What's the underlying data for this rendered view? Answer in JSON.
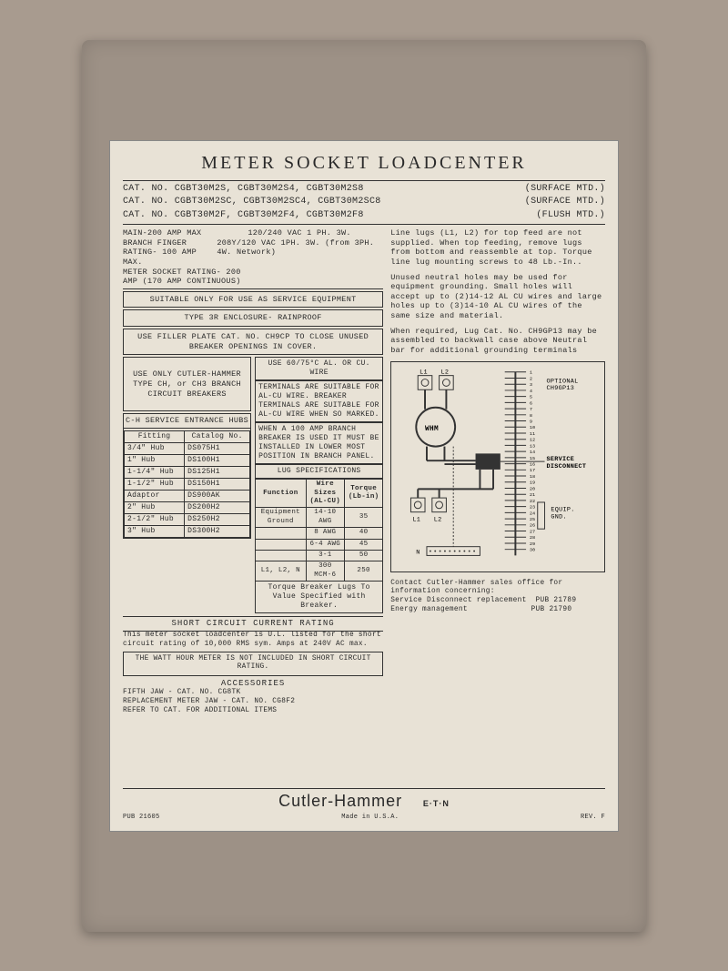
{
  "title": "METER SOCKET LOADCENTER",
  "cat_rows": [
    {
      "left": "CAT. NO. CGBT30M2S, CGBT30M2S4, CGBT30M2S8",
      "right": "(SURFACE MTD.)"
    },
    {
      "left": "CAT. NO. CGBT30M2SC, CGBT30M2SC4, CGBT30M2SC8",
      "right": "(SURFACE MTD.)"
    },
    {
      "left": "CAT. NO. CGBT30M2F, CGBT30M2F4, CGBT30M2F8",
      "right": "(FLUSH MTD.)"
    }
  ],
  "main_specs": [
    {
      "k": "MAIN-200 AMP MAX",
      "v": "120/240 VAC 1 PH. 3W."
    },
    {
      "k": "BRANCH FINGER RATING- 100 AMP MAX.",
      "v": "208Y/120 VAC 1PH. 3W. (from 3PH. 4W. Network)"
    },
    {
      "k": "METER SOCKET RATING- 200 AMP (170 AMP CONTINUOUS)",
      "v": ""
    }
  ],
  "boxes": {
    "service": "SUITABLE ONLY FOR USE AS SERVICE EQUIPMENT",
    "enclosure": "TYPE 3R ENCLOSURE- RAINPROOF",
    "filler": "USE FILLER PLATE CAT. NO. CH9CP TO CLOSE UNUSED BREAKER OPENINGS IN COVER.",
    "breakers": "USE ONLY CUTLER-HAMMER TYPE CH, or CH3 BRANCH CIRCUIT BREAKERS",
    "wire_title": "USE 60/75°C AL. OR CU. WIRE",
    "wire_note1": "TERMINALS ARE SUITABLE FOR AL-CU WIRE. BREAKER TERMINALS ARE SUITABLE FOR AL-CU WIRE WHEN SO MARKED.",
    "wire_note2": "WHEN A 100 AMP BRANCH BREAKER IS USED IT MUST BE INSTALLED IN LOWER MOST POSITION IN BRANCH PANEL."
  },
  "hubs": {
    "title": "C-H SERVICE ENTRANCE HUBS",
    "headers": [
      "Fitting",
      "Catalog No."
    ],
    "rows": [
      [
        "3/4\"  Hub",
        "DS075H1"
      ],
      [
        "1\"    Hub",
        "DS100H1"
      ],
      [
        "1-1/4\" Hub",
        "DS125H1"
      ],
      [
        "1-1/2\" Hub",
        "DS150H1"
      ],
      [
        "Adaptor",
        "DS900AK"
      ],
      [
        "2\"    Hub",
        "DS200H2"
      ],
      [
        "2-1/2\" Hub",
        "DS250H2"
      ],
      [
        "3\"    Hub",
        "DS300H2"
      ]
    ]
  },
  "lug": {
    "title": "LUG SPECIFICATIONS",
    "headers": [
      "Function",
      "Wire Sizes (AL-CU)",
      "Torque (Lb-in)"
    ],
    "rows": [
      [
        "Equipment Ground",
        "14-10 AWG",
        "35"
      ],
      [
        "",
        "8 AWG",
        "40"
      ],
      [
        "",
        "6-4 AWG",
        "45"
      ],
      [
        "",
        "3-1",
        "50"
      ],
      [
        "L1, L2, N",
        "300 MCM-6",
        "250"
      ]
    ],
    "footer": "Torque Breaker Lugs To Value Specified with Breaker."
  },
  "scr": {
    "title": "SHORT CIRCUIT CURRENT RATING",
    "text": "This meter socket loadcenter is U.L. listed for the short circuit rating of 10,000 RMS sym. Amps at 240V AC max.",
    "note": "THE WATT HOUR METER IS NOT INCLUDED IN SHORT CIRCUIT RATING."
  },
  "accessories": {
    "title": "ACCESSORIES",
    "lines": [
      "FIFTH JAW - CAT. NO. CG8TK",
      "REPLACEMENT METER JAW - CAT. NO. CG8F2",
      "REFER TO CAT. FOR ADDITIONAL ITEMS"
    ]
  },
  "right_paras": [
    "Line lugs (L1, L2) for top feed are not supplied. When top feeding, remove lugs from bottom and reassemble at top. Torque line lug mounting screws to 48 Lb.-In..",
    "Unused neutral holes may be used for equipment grounding. Small holes will accept up to (2)14-12 AL CU wires and large holes up to (3)14-10 AL CU wires of the same size and material.",
    "When required, Lug Cat. No. CH9GP13 may be assembled to backwall case above Neutral bar for additional grounding terminals"
  ],
  "diagram": {
    "labels": {
      "l1_top": "L1",
      "l2_top": "L2",
      "whm": "WHM",
      "l1_bot": "L1",
      "l2_bot": "L2",
      "n": "N",
      "service": "SERVICE DISCONNECT",
      "optional": "OPTIONAL CH9GP13",
      "equip": "EQUIP. GND."
    },
    "slots": 30
  },
  "contact": {
    "line1": "Contact Cutler-Hammer sales office for information concerning:",
    "line2": "Service Disconnect replacement  PUB 21789",
    "line3": "Energy management              PUB 21790"
  },
  "footer": {
    "brand": "Cutler-Hammer",
    "eaton": "E·T·N",
    "made": "Made in U.S.A.",
    "pub": "PUB 21605",
    "rev": "REV. F"
  }
}
